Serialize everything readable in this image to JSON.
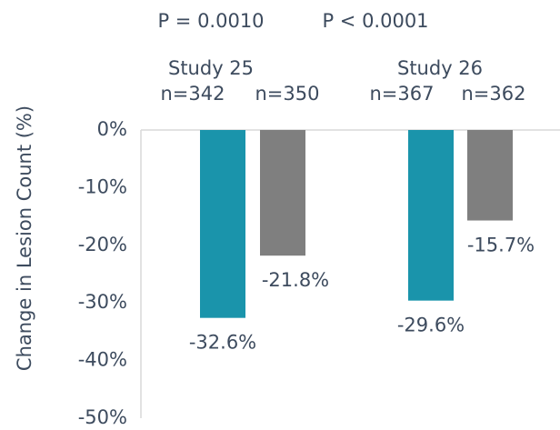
{
  "chart_data": {
    "type": "bar",
    "y_label": "Change in Lesion Count (%)",
    "categories": [
      "Study 25",
      "Study 26"
    ],
    "p_values": [
      "P = 0.0010",
      "P < 0.0001"
    ],
    "series": [
      {
        "color": "#1a94ab",
        "values": [
          -32.6,
          -29.6
        ],
        "value_labels": [
          "-32.6%",
          "-29.6%"
        ],
        "n": [
          "n=342",
          "n=367"
        ]
      },
      {
        "color": "#7f7f7f",
        "values": [
          -21.8,
          -15.7
        ],
        "value_labels": [
          "-21.8%",
          "-15.7%"
        ],
        "n": [
          "n=350",
          "n=362"
        ]
      }
    ],
    "ylim": [
      -50,
      0
    ],
    "yticks": [
      {
        "value": 0,
        "label": "0%"
      },
      {
        "value": -10,
        "label": "-10%"
      },
      {
        "value": -20,
        "label": "-20%"
      },
      {
        "value": -30,
        "label": "-30%"
      },
      {
        "value": -40,
        "label": "-40%"
      },
      {
        "value": -50,
        "label": "-50%"
      }
    ]
  }
}
